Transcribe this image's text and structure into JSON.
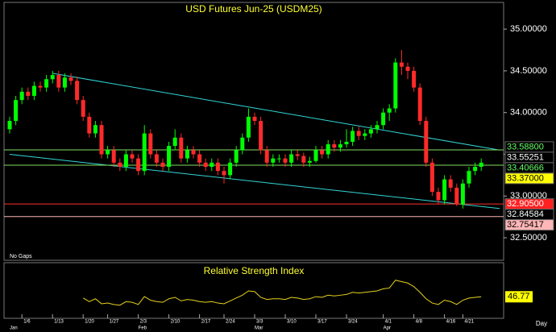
{
  "chart_data": [
    {
      "type": "candlestick",
      "title": "USD Futures Jun-25 (USDM25)",
      "note": "No Gaps",
      "x_axis_label": "Day",
      "categories": [
        null,
        null,
        "1/6",
        null,
        null,
        null,
        null,
        "1/13",
        null,
        null,
        null,
        null,
        "1/20",
        null,
        null,
        null,
        "1/27",
        null,
        null,
        null,
        null,
        "2/3",
        null,
        null,
        null,
        null,
        "2/10",
        null,
        null,
        null,
        null,
        "2/17",
        null,
        null,
        null,
        "2/24",
        null,
        null,
        null,
        null,
        "3/3",
        null,
        null,
        null,
        null,
        "3/10",
        null,
        null,
        null,
        null,
        "3/17",
        null,
        null,
        null,
        null,
        "3/24",
        null,
        null,
        null,
        null,
        null,
        "4/1",
        null,
        null,
        null,
        null,
        "4/8",
        null,
        null,
        null,
        null,
        "4/16",
        null,
        null,
        "4/21",
        null,
        null,
        null
      ],
      "months": [
        "Jan",
        null,
        null,
        null,
        null,
        null,
        null,
        null,
        null,
        null,
        null,
        null,
        null,
        null,
        null,
        null,
        null,
        null,
        null,
        null,
        null,
        "Feb",
        null,
        null,
        null,
        null,
        null,
        null,
        null,
        null,
        null,
        null,
        null,
        null,
        null,
        null,
        null,
        null,
        null,
        null,
        "Mar",
        null,
        null,
        null,
        null,
        null,
        null,
        null,
        null,
        null,
        null,
        null,
        null,
        null,
        null,
        null,
        null,
        null,
        null,
        null,
        null,
        "Apr",
        null,
        null,
        null,
        null,
        null,
        null,
        null,
        null,
        null,
        null,
        null,
        null,
        null,
        null,
        null,
        null
      ],
      "open": [
        33.8,
        33.9,
        34.15,
        34.25,
        34.2,
        34.32,
        34.3,
        34.4,
        34.45,
        34.3,
        34.42,
        34.38,
        34.15,
        33.95,
        33.75,
        33.85,
        33.5,
        33.55,
        33.4,
        33.35,
        33.5,
        33.45,
        33.3,
        33.75,
        33.5,
        33.4,
        33.35,
        33.6,
        33.7,
        33.45,
        33.55,
        33.5,
        33.4,
        33.35,
        33.4,
        33.3,
        33.25,
        33.4,
        33.55,
        33.7,
        33.95,
        33.9,
        33.55,
        33.4,
        33.45,
        33.45,
        33.4,
        33.5,
        33.48,
        33.4,
        33.42,
        33.55,
        33.5,
        33.62,
        33.58,
        33.62,
        33.65,
        33.78,
        33.72,
        33.75,
        33.8,
        33.85,
        34.0,
        34.05,
        34.6,
        34.55,
        34.5,
        34.3,
        33.9,
        33.4,
        33.05,
        32.95,
        33.2,
        33.1,
        32.9,
        33.15,
        33.3,
        33.35
      ],
      "high": [
        33.95,
        34.2,
        34.3,
        34.3,
        34.37,
        34.37,
        34.45,
        34.5,
        34.5,
        34.47,
        34.47,
        34.43,
        34.2,
        34.0,
        33.9,
        33.9,
        33.6,
        33.6,
        33.45,
        33.55,
        33.55,
        33.5,
        33.85,
        33.8,
        33.55,
        33.45,
        33.65,
        33.8,
        33.75,
        33.6,
        33.6,
        33.55,
        33.45,
        33.45,
        33.45,
        33.35,
        33.45,
        33.6,
        33.75,
        34.05,
        34.0,
        33.95,
        33.6,
        33.5,
        33.5,
        33.5,
        33.55,
        33.55,
        33.52,
        33.47,
        33.6,
        33.6,
        33.67,
        33.67,
        33.67,
        33.8,
        33.83,
        33.83,
        33.8,
        33.85,
        33.9,
        34.05,
        34.1,
        34.65,
        34.75,
        34.6,
        34.55,
        34.35,
        33.95,
        33.45,
        33.1,
        33.25,
        33.25,
        33.15,
        33.2,
        33.35,
        33.4,
        33.45
      ],
      "low": [
        33.75,
        33.85,
        34.1,
        34.15,
        34.15,
        34.25,
        34.25,
        34.35,
        34.25,
        34.25,
        34.33,
        34.1,
        33.9,
        33.7,
        33.7,
        33.45,
        33.45,
        33.35,
        33.3,
        33.3,
        33.4,
        33.25,
        33.25,
        33.45,
        33.35,
        33.3,
        33.3,
        33.55,
        33.4,
        33.4,
        33.45,
        33.35,
        33.3,
        33.3,
        33.25,
        33.15,
        33.2,
        33.35,
        33.5,
        33.65,
        33.85,
        33.5,
        33.35,
        33.35,
        33.4,
        33.35,
        33.35,
        33.43,
        33.35,
        33.35,
        33.4,
        33.45,
        33.45,
        33.53,
        33.53,
        33.58,
        33.6,
        33.67,
        33.67,
        33.7,
        33.75,
        33.8,
        33.9,
        34.0,
        34.45,
        34.4,
        34.25,
        33.85,
        33.35,
        33.0,
        32.9,
        32.9,
        33.05,
        32.88,
        32.85,
        33.1,
        33.25,
        33.3
      ],
      "close": [
        33.9,
        34.15,
        34.25,
        34.2,
        34.32,
        34.3,
        34.4,
        34.45,
        34.3,
        34.42,
        34.38,
        34.15,
        33.95,
        33.75,
        33.85,
        33.5,
        33.55,
        33.4,
        33.35,
        33.5,
        33.45,
        33.3,
        33.75,
        33.5,
        33.4,
        33.35,
        33.6,
        33.7,
        33.45,
        33.55,
        33.5,
        33.4,
        33.35,
        33.4,
        33.3,
        33.25,
        33.4,
        33.55,
        33.7,
        33.95,
        33.9,
        33.55,
        33.4,
        33.45,
        33.45,
        33.4,
        33.5,
        33.48,
        33.4,
        33.42,
        33.55,
        33.5,
        33.62,
        33.58,
        33.62,
        33.65,
        33.78,
        33.72,
        33.75,
        33.8,
        33.85,
        34.0,
        34.05,
        34.6,
        34.55,
        34.5,
        34.3,
        33.9,
        33.4,
        33.05,
        32.95,
        33.2,
        33.1,
        32.9,
        33.15,
        33.3,
        33.35,
        33.4
      ],
      "up_color": "#00ff00",
      "down_color": "#ff2a2a",
      "ylim": [
        32.23,
        35.32
      ],
      "yticks": [
        {
          "value": 32.5,
          "label": "32.50000"
        },
        {
          "value": 33.0,
          "label": "33.00000"
        },
        {
          "value": 33.5,
          "label": "33.50000"
        },
        {
          "value": 34.0,
          "label": "34.00000"
        },
        {
          "value": 34.5,
          "label": "34.50000"
        },
        {
          "value": 35.0,
          "label": "35.00000"
        }
      ],
      "trendlines": [
        {
          "color": "#33d6d6",
          "x": [
            7,
            80
          ],
          "y": [
            34.47,
            33.55
          ]
        },
        {
          "color": "#33d6d6",
          "x": [
            0,
            80
          ],
          "y": [
            33.5,
            32.85
          ]
        }
      ],
      "levels": [
        {
          "value": 33.588,
          "label": "33.58800",
          "bg": "#000000",
          "text_color": "#66ff66",
          "line": false
        },
        {
          "value": 33.55251,
          "label": "33.55251",
          "bg": "#000000",
          "text_color": "#ffffff",
          "line": true,
          "line_color": "#7fdf5f"
        },
        {
          "value": 33.40666,
          "label": "33.40666",
          "bg": "#000000",
          "text_color": "#66ff66",
          "line": false
        },
        {
          "value": 33.37,
          "label": "33.37000",
          "bg": "#ffff00",
          "text_color": "#000000",
          "line": true,
          "line_color": "#7fdf5f"
        },
        {
          "value": 32.905,
          "label": "32.90500",
          "bg": "#ff2020",
          "text_color": "#ffffff",
          "line": true,
          "line_color": "#ff3030"
        },
        {
          "value": 32.84584,
          "label": "32.84584",
          "bg": "#000000",
          "text_color": "#ffffff",
          "line": false
        },
        {
          "value": 32.75417,
          "label": "32.75417",
          "bg": "#ffb6b6",
          "text_color": "#000000",
          "line": true,
          "line_color": "#ffb6b6"
        }
      ]
    },
    {
      "type": "line",
      "title": "Relative Strength Index",
      "ylim": [
        20,
        90
      ],
      "series": [
        {
          "name": "RSI",
          "color": "#e6d21e",
          "values": [
            null,
            null,
            null,
            null,
            null,
            null,
            null,
            null,
            null,
            null,
            null,
            null,
            45,
            40,
            44,
            37,
            38,
            36,
            35,
            40,
            39,
            36,
            47,
            42,
            40,
            39,
            44,
            46,
            41,
            43,
            42,
            40,
            39,
            40,
            38,
            37,
            41,
            45,
            49,
            55,
            54,
            46,
            43,
            44,
            44,
            43,
            46,
            45,
            43,
            44,
            47,
            46,
            49,
            48,
            49,
            50,
            53,
            52,
            53,
            54,
            55,
            58,
            59,
            70,
            68,
            66,
            61,
            53,
            44,
            38,
            36,
            42,
            40,
            36,
            42,
            45,
            46,
            46.77
          ]
        }
      ]
    }
  ]
}
